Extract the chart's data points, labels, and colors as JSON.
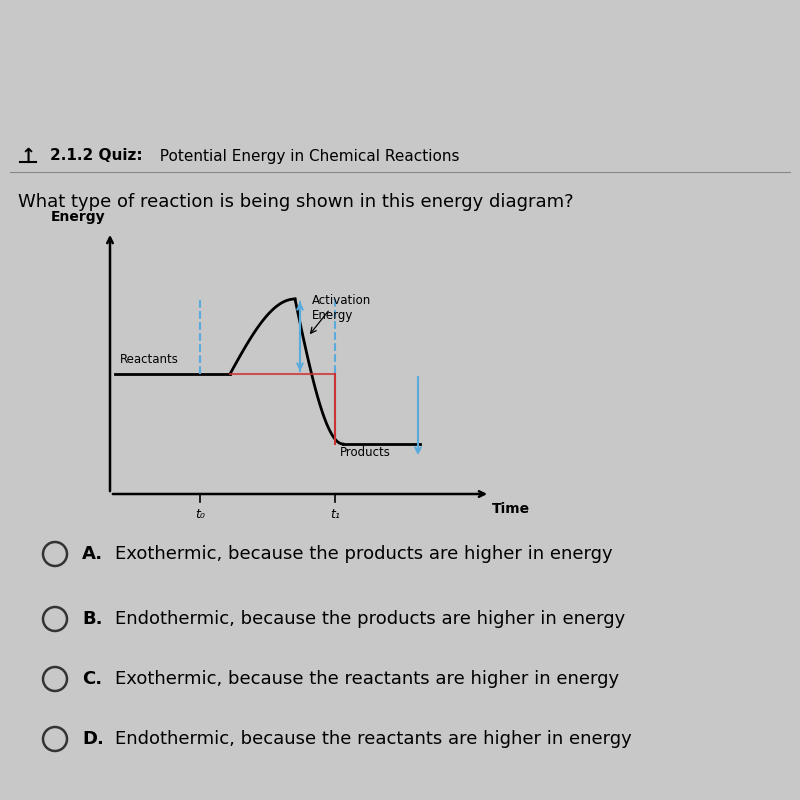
{
  "bg_dark": "#111111",
  "bg_light": "#c8c8c8",
  "bg_stripe": "#3a6fa0",
  "header_bold": "2.1.2 Quiz:",
  "header_normal": "  Potential Energy in Chemical Reactions",
  "question": "What type of reaction is being shown in this energy diagram?",
  "energy_label": "Energy",
  "time_label": "Time",
  "t0": "t₀",
  "t1": "t₁",
  "reactants_label": "Reactants",
  "activation_label": "Activation\nEnergy",
  "products_label": "Products",
  "curve_color": "#000000",
  "dash_color": "#5aabdd",
  "red_line_color": "#cc3333",
  "choices": [
    {
      "letter": "A.",
      "text": "Exothermic, because the products are higher in energy"
    },
    {
      "letter": "B.",
      "text": "Endothermic, because the products are higher in energy"
    },
    {
      "letter": "C.",
      "text": "Exothermic, because the reactants are higher in energy"
    },
    {
      "letter": "D.",
      "text": "Endothermic, because the reactants are higher in energy"
    }
  ]
}
